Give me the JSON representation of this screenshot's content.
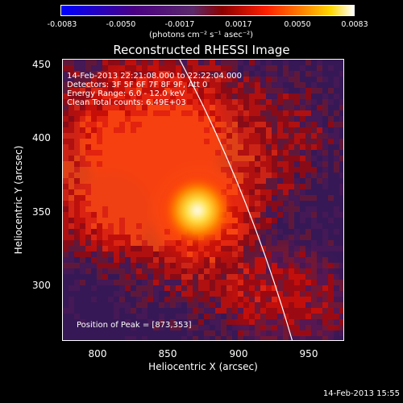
{
  "colorbar": {
    "ticks": [
      "-0.0083",
      "-0.0050",
      "-0.0017",
      "0.0017",
      "0.0050",
      "0.0083"
    ],
    "unit_label": "(photons cm⁻² s⁻¹ asec⁻²)"
  },
  "title": "Reconstructed RHESSI Image",
  "info": {
    "line1": "14-Feb-2013 22:21:08.000 to 22:22:04.000",
    "line2": "Detectors: 3F 5F 6F 7F 8F 9F, Att 0",
    "line3": "Energy Range: 6.0 - 12.0 keV",
    "line4": "Clean     Total counts: 6.49E+03"
  },
  "peak_label": "Position of Peak = [873,353]",
  "axes": {
    "xlabel": "Heliocentric X (arcsec)",
    "ylabel": "Heliocentric Y (arcsec)",
    "xticks": [
      "800",
      "850",
      "900",
      "950"
    ],
    "yticks": [
      "450",
      "400",
      "350",
      "300"
    ]
  },
  "timestamp": "14-Feb-2013 15:55"
}
